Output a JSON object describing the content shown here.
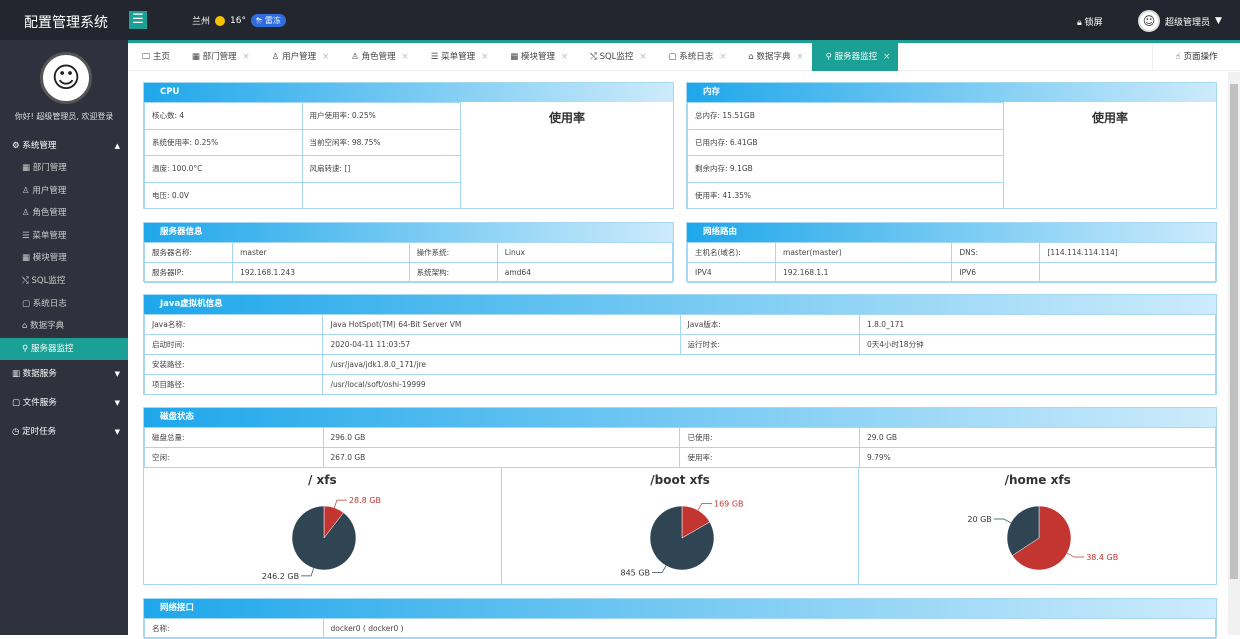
{
  "header": {
    "title": "配置管理系统",
    "city": "兰州",
    "temp": "16°",
    "weather_badge": "⛈ 雷冻",
    "lock": "锁屏",
    "user": "超级管理员"
  },
  "sidebar": {
    "welcome": "你好! 超级管理员, 欢迎登录",
    "group": "系统管理",
    "items": [
      "部门管理",
      "用户管理",
      "角色管理",
      "菜单管理",
      "模块管理",
      "SQL监控",
      "系统日志",
      "数据字典",
      "服务器监控"
    ],
    "groups": [
      "数据服务",
      "文件服务",
      "定时任务"
    ]
  },
  "tabs": [
    "主页",
    "部门管理",
    "用户管理",
    "角色管理",
    "菜单管理",
    "模块管理",
    "SQL监控",
    "系统日志",
    "数据字典",
    "服务器监控"
  ],
  "page_op": "页面操作",
  "cpu": {
    "title": "CPU",
    "chart_title": "使用率",
    "rows": [
      [
        "核心数: 4",
        "用户使用率: 0.25%"
      ],
      [
        "系统使用率: 0.25%",
        "当前空闲率: 98.75%"
      ],
      [
        "温度: 100.0°C",
        "风扇转速: []"
      ],
      [
        "电压: 0.0V",
        ""
      ]
    ]
  },
  "memory": {
    "title": "内存",
    "chart_title": "使用率",
    "rows": [
      "总内存: 15.51GB",
      "已用内存: 6.41GB",
      "剩余内存: 9.1GB",
      "使用率: 41.35%"
    ]
  },
  "server": {
    "title": "服务器信息",
    "rows": [
      [
        "服务器名称:",
        "master",
        "操作系统:",
        "Linux"
      ],
      [
        "服务器IP:",
        "192.168.1.243",
        "系统架构:",
        "amd64"
      ]
    ]
  },
  "network": {
    "title": "网络路由",
    "rows": [
      [
        "主机名(域名):",
        "master(master)",
        "DNS:",
        "[114.114.114.114]"
      ],
      [
        "IPV4",
        "192.168.1.1",
        "IPV6",
        ""
      ]
    ]
  },
  "jvm": {
    "title": "Java虚拟机信息",
    "rows": [
      [
        "Java名称:",
        "Java HotSpot(TM) 64-Bit Server VM",
        "Java版本:",
        "1.8.0_171"
      ],
      [
        "启动时间:",
        "2020-04-11 11:03:57",
        "运行时长:",
        "0天4小时18分钟"
      ]
    ],
    "rows2": [
      [
        "安装路径:",
        "/usr/java/jdk1.8.0_171/jre"
      ],
      [
        "项目路径:",
        "/usr/local/soft/oshi-19999"
      ]
    ]
  },
  "disk": {
    "title": "磁盘状态",
    "rows": [
      [
        "磁盘总量:",
        "296.0 GB",
        "已使用:",
        "29.0 GB"
      ],
      [
        "空闲:",
        "267.0 GB",
        "使用率:",
        "9.79%"
      ]
    ]
  },
  "chart_data": [
    {
      "type": "pie",
      "title": "/   xfs",
      "slices": [
        {
          "label": "28.8 GB",
          "value": 28.8,
          "color": "#c23531"
        },
        {
          "label": "246.2 GB",
          "value": 246.2,
          "color": "#2f4554"
        }
      ]
    },
    {
      "type": "pie",
      "title": "/boot   xfs",
      "slices": [
        {
          "label": "169 GB",
          "value": 169,
          "color": "#c23531"
        },
        {
          "label": "845 GB",
          "value": 845,
          "color": "#2f4554"
        }
      ]
    },
    {
      "type": "pie",
      "title": "/home   xfs",
      "slices": [
        {
          "label": "38.4 GB",
          "value": 38.4,
          "color": "#c23531"
        },
        {
          "label": "20 GB",
          "value": 20,
          "color": "#2f4554"
        }
      ]
    }
  ],
  "netif": {
    "title": "网络接口",
    "rows": [
      [
        "名称:",
        "docker0 ( docker0 )"
      ]
    ]
  }
}
